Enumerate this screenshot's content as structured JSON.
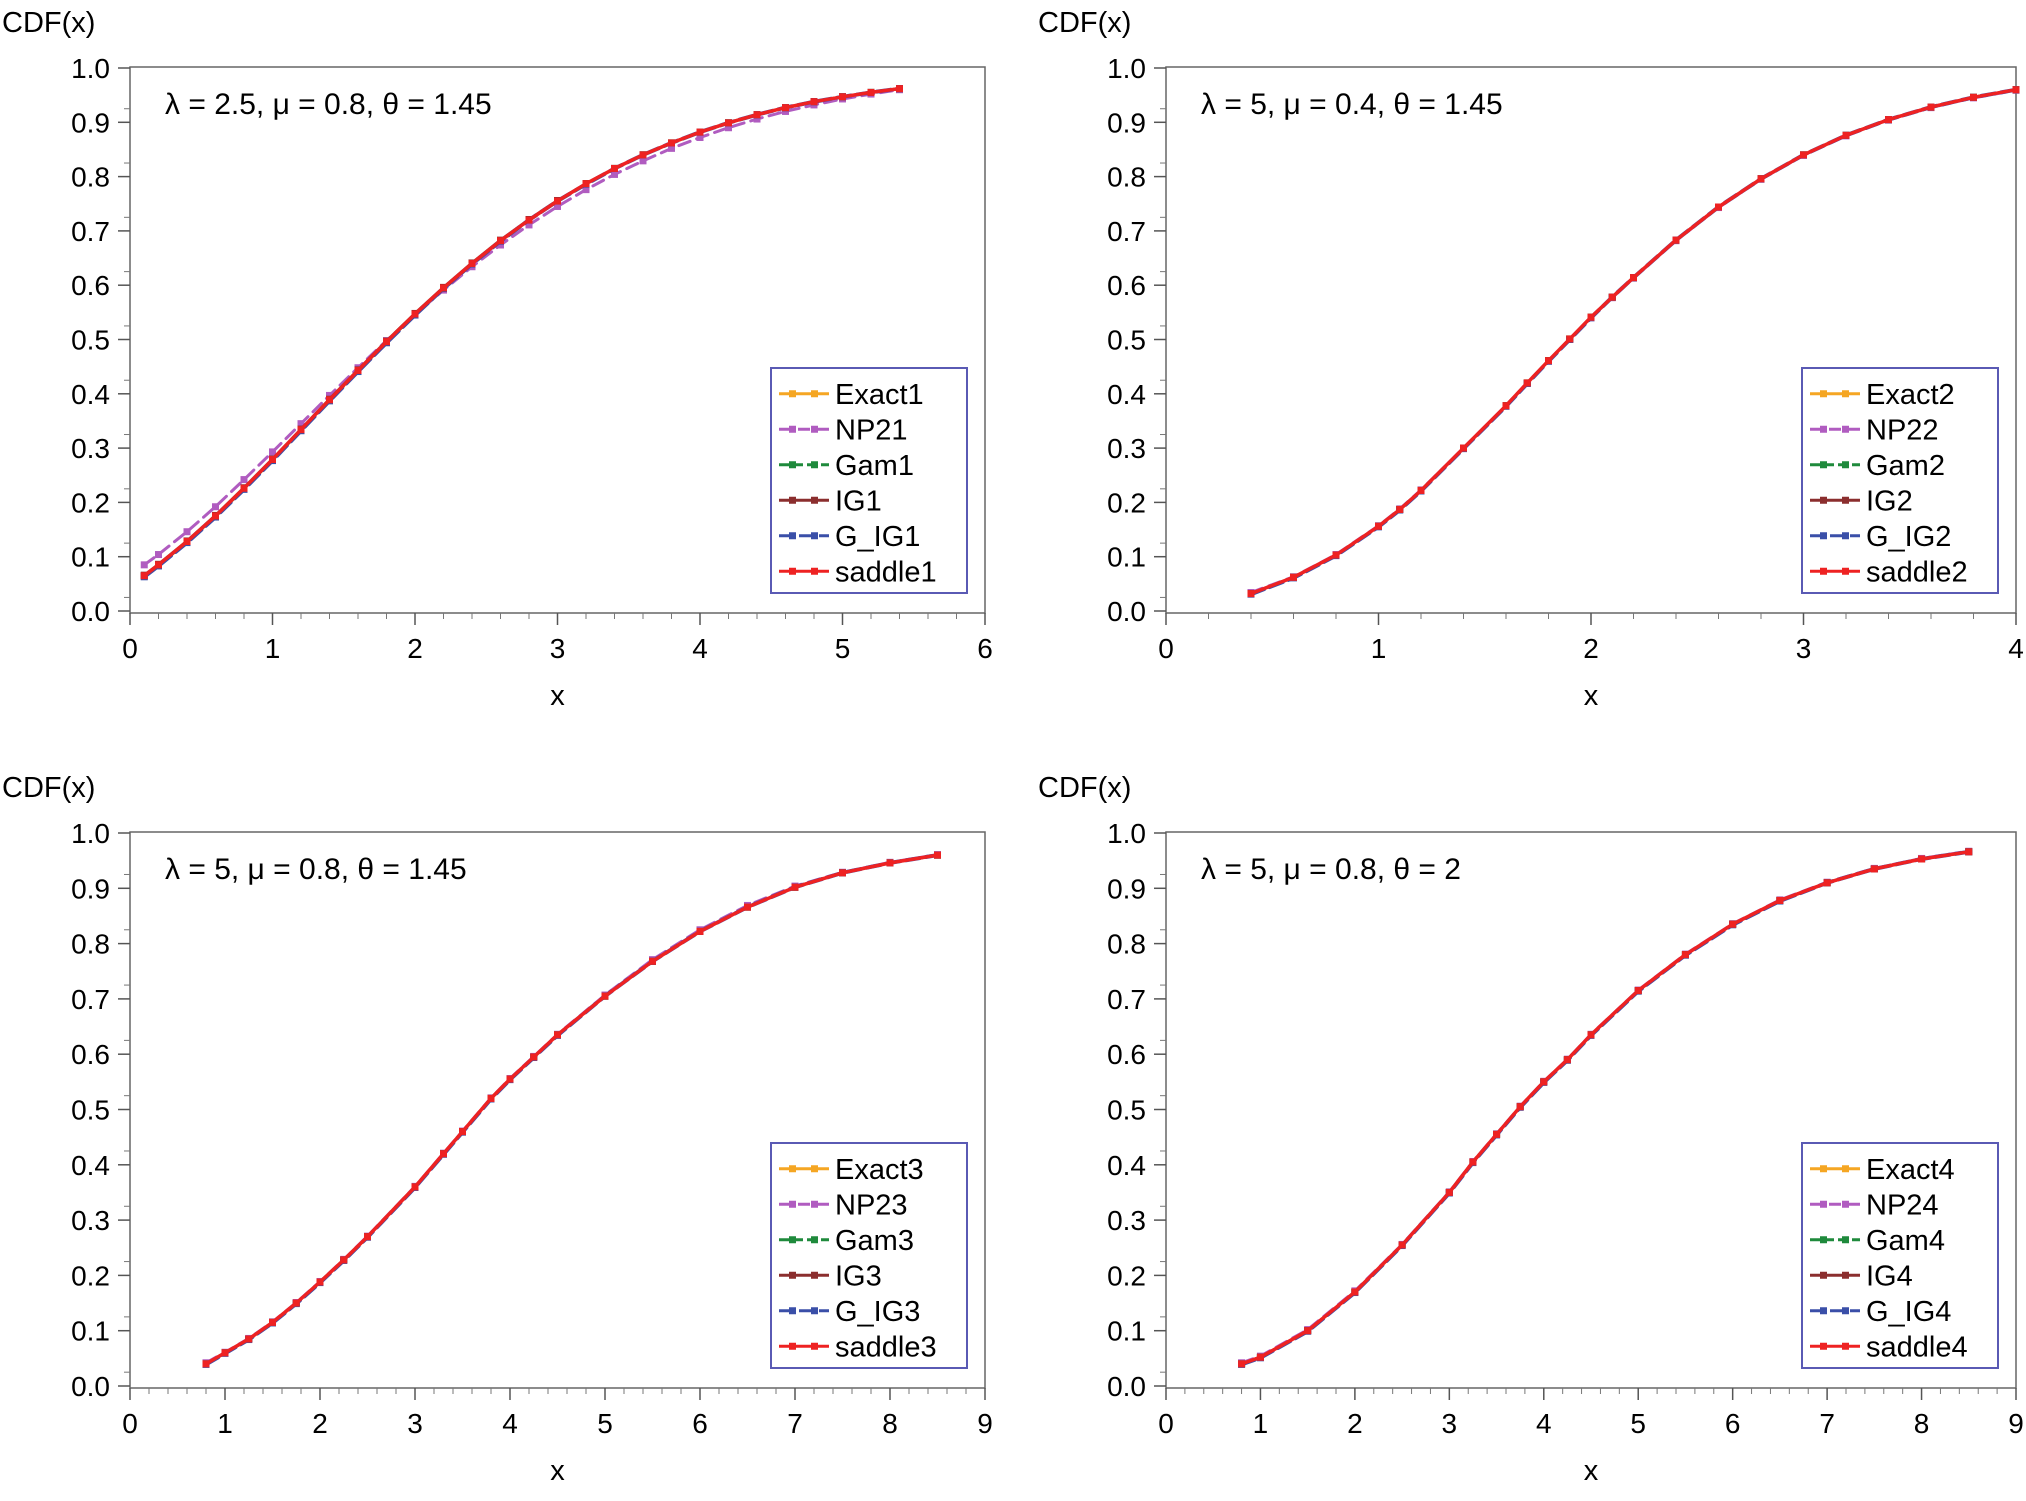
{
  "colors": {
    "Exact": "#f5a623",
    "NP2": "#b05cc0",
    "Gam": "#1f8a3c",
    "IG": "#8b2e2e",
    "G_IG": "#3a4fa8",
    "saddle": "#ee2222",
    "frame": "#666666",
    "legend_border": "#5a5ab4"
  },
  "chart_data": [
    {
      "type": "line",
      "ylabel": "CDF(x)",
      "xlabel": "x",
      "annotation": "λ = 2.5, μ = 0.8, θ = 1.45",
      "xlim": [
        0,
        6
      ],
      "ylim": [
        0,
        1
      ],
      "xticks": [
        "0",
        "1",
        "2",
        "3",
        "4",
        "5",
        "6"
      ],
      "yticks": [
        "0.0",
        "0.1",
        "0.2",
        "0.3",
        "0.4",
        "0.5",
        "0.6",
        "0.7",
        "0.8",
        "0.9",
        "1.0"
      ],
      "legend_position": "lower-right",
      "grid": false,
      "x": [
        0.1,
        0.2,
        0.4,
        0.6,
        0.8,
        1.0,
        1.2,
        1.4,
        1.6,
        1.8,
        2.0,
        2.2,
        2.4,
        2.6,
        2.8,
        3.0,
        3.2,
        3.4,
        3.6,
        3.8,
        4.0,
        4.2,
        4.4,
        4.6,
        4.8,
        5.0,
        5.2,
        5.4
      ],
      "series": [
        {
          "name": "Exact1",
          "color_key": "Exact",
          "values": [
            0.065,
            0.085,
            0.128,
            0.175,
            0.226,
            0.279,
            0.334,
            0.389,
            0.443,
            0.496,
            0.547,
            0.595,
            0.64,
            0.682,
            0.72,
            0.755,
            0.787,
            0.815,
            0.84,
            0.862,
            0.882,
            0.899,
            0.914,
            0.927,
            0.938,
            0.947,
            0.955,
            0.962
          ]
        },
        {
          "name": "NP21",
          "color_key": "NP2",
          "values": [
            0.085,
            0.104,
            0.146,
            0.192,
            0.242,
            0.293,
            0.345,
            0.397,
            0.448,
            0.498,
            0.546,
            0.591,
            0.634,
            0.674,
            0.711,
            0.745,
            0.776,
            0.804,
            0.829,
            0.852,
            0.872,
            0.89,
            0.906,
            0.92,
            0.932,
            0.943,
            0.952,
            0.96
          ]
        },
        {
          "name": "Gam1",
          "color_key": "Gam",
          "values": [
            0.064,
            0.084,
            0.127,
            0.174,
            0.225,
            0.278,
            0.333,
            0.388,
            0.442,
            0.495,
            0.546,
            0.594,
            0.64,
            0.682,
            0.72,
            0.755,
            0.787,
            0.815,
            0.84,
            0.862,
            0.882,
            0.899,
            0.914,
            0.927,
            0.938,
            0.947,
            0.955,
            0.962
          ]
        },
        {
          "name": "IG1",
          "color_key": "IG",
          "values": [
            0.066,
            0.086,
            0.129,
            0.176,
            0.227,
            0.28,
            0.335,
            0.39,
            0.444,
            0.497,
            0.548,
            0.596,
            0.641,
            0.683,
            0.721,
            0.756,
            0.787,
            0.815,
            0.84,
            0.862,
            0.882,
            0.899,
            0.914,
            0.927,
            0.938,
            0.947,
            0.955,
            0.962
          ]
        },
        {
          "name": "G_IG1",
          "color_key": "G_IG",
          "values": [
            0.063,
            0.083,
            0.126,
            0.173,
            0.224,
            0.277,
            0.332,
            0.387,
            0.441,
            0.494,
            0.545,
            0.594,
            0.639,
            0.681,
            0.72,
            0.755,
            0.786,
            0.815,
            0.84,
            0.862,
            0.882,
            0.899,
            0.914,
            0.927,
            0.938,
            0.947,
            0.955,
            0.962
          ]
        },
        {
          "name": "saddle1",
          "color_key": "saddle",
          "values": [
            0.065,
            0.085,
            0.128,
            0.175,
            0.226,
            0.279,
            0.334,
            0.389,
            0.443,
            0.496,
            0.547,
            0.595,
            0.64,
            0.682,
            0.72,
            0.755,
            0.787,
            0.815,
            0.84,
            0.862,
            0.882,
            0.899,
            0.914,
            0.927,
            0.938,
            0.947,
            0.955,
            0.962
          ]
        }
      ]
    },
    {
      "type": "line",
      "ylabel": "CDF(x)",
      "xlabel": "x",
      "annotation": "λ = 5, μ = 0.4, θ = 1.45",
      "xlim": [
        0,
        4
      ],
      "ylim": [
        0,
        1
      ],
      "xticks": [
        "0",
        "1",
        "2",
        "3",
        "4"
      ],
      "yticks": [
        "0.0",
        "0.1",
        "0.2",
        "0.3",
        "0.4",
        "0.5",
        "0.6",
        "0.7",
        "0.8",
        "0.9",
        "1.0"
      ],
      "legend_position": "lower-right",
      "grid": false,
      "x": [
        0.4,
        0.6,
        0.8,
        1.0,
        1.1,
        1.2,
        1.4,
        1.6,
        1.7,
        1.8,
        1.9,
        2.0,
        2.1,
        2.2,
        2.4,
        2.6,
        2.8,
        3.0,
        3.2,
        3.4,
        3.6,
        3.8,
        4.0
      ],
      "series": [
        {
          "name": "Exact2",
          "color_key": "Exact",
          "values": [
            0.032,
            0.062,
            0.103,
            0.156,
            0.187,
            0.222,
            0.3,
            0.378,
            0.42,
            0.461,
            0.501,
            0.541,
            0.578,
            0.614,
            0.683,
            0.744,
            0.796,
            0.84,
            0.876,
            0.905,
            0.928,
            0.946,
            0.96
          ]
        },
        {
          "name": "NP22",
          "color_key": "NP2",
          "values": [
            0.034,
            0.063,
            0.104,
            0.157,
            0.188,
            0.223,
            0.3,
            0.378,
            0.419,
            0.46,
            0.5,
            0.54,
            0.577,
            0.613,
            0.682,
            0.743,
            0.795,
            0.839,
            0.875,
            0.904,
            0.927,
            0.945,
            0.959
          ]
        },
        {
          "name": "Gam2",
          "color_key": "Gam",
          "values": [
            0.032,
            0.062,
            0.103,
            0.156,
            0.187,
            0.222,
            0.3,
            0.378,
            0.42,
            0.461,
            0.501,
            0.541,
            0.578,
            0.614,
            0.683,
            0.744,
            0.796,
            0.84,
            0.876,
            0.905,
            0.928,
            0.946,
            0.96
          ]
        },
        {
          "name": "IG2",
          "color_key": "IG",
          "values": [
            0.032,
            0.062,
            0.103,
            0.156,
            0.187,
            0.222,
            0.3,
            0.378,
            0.42,
            0.461,
            0.501,
            0.541,
            0.578,
            0.614,
            0.683,
            0.744,
            0.796,
            0.84,
            0.876,
            0.905,
            0.928,
            0.946,
            0.96
          ]
        },
        {
          "name": "G_IG2",
          "color_key": "G_IG",
          "values": [
            0.031,
            0.061,
            0.102,
            0.155,
            0.186,
            0.221,
            0.299,
            0.377,
            0.419,
            0.46,
            0.5,
            0.54,
            0.578,
            0.614,
            0.683,
            0.744,
            0.796,
            0.84,
            0.876,
            0.905,
            0.928,
            0.946,
            0.96
          ]
        },
        {
          "name": "saddle2",
          "color_key": "saddle",
          "values": [
            0.032,
            0.062,
            0.103,
            0.156,
            0.187,
            0.222,
            0.3,
            0.378,
            0.42,
            0.461,
            0.501,
            0.541,
            0.578,
            0.614,
            0.683,
            0.744,
            0.796,
            0.84,
            0.876,
            0.905,
            0.928,
            0.946,
            0.96
          ]
        }
      ]
    },
    {
      "type": "line",
      "ylabel": "CDF(x)",
      "xlabel": "x",
      "annotation": "λ = 5, μ = 0.8, θ = 1.45",
      "xlim": [
        0,
        9
      ],
      "ylim": [
        0,
        1
      ],
      "xticks": [
        "0",
        "1",
        "2",
        "3",
        "4",
        "5",
        "6",
        "7",
        "8",
        "9"
      ],
      "yticks": [
        "0.0",
        "0.1",
        "0.2",
        "0.3",
        "0.4",
        "0.5",
        "0.6",
        "0.7",
        "0.8",
        "0.9",
        "1.0"
      ],
      "legend_position": "lower-right",
      "grid": false,
      "x": [
        0.8,
        1.0,
        1.25,
        1.5,
        1.75,
        2.0,
        2.25,
        2.5,
        3.0,
        3.3,
        3.5,
        3.8,
        4.0,
        4.25,
        4.5,
        5.0,
        5.5,
        6.0,
        6.5,
        7.0,
        7.5,
        8.0,
        8.5
      ],
      "series": [
        {
          "name": "Exact3",
          "color_key": "Exact",
          "values": [
            0.04,
            0.06,
            0.085,
            0.115,
            0.15,
            0.188,
            0.228,
            0.27,
            0.36,
            0.42,
            0.46,
            0.52,
            0.555,
            0.595,
            0.635,
            0.705,
            0.768,
            0.822,
            0.866,
            0.902,
            0.928,
            0.946,
            0.96
          ]
        },
        {
          "name": "NP23",
          "color_key": "NP2",
          "values": [
            0.042,
            0.061,
            0.086,
            0.116,
            0.151,
            0.189,
            0.229,
            0.271,
            0.361,
            0.421,
            0.461,
            0.521,
            0.556,
            0.596,
            0.636,
            0.707,
            0.771,
            0.825,
            0.869,
            0.904,
            0.929,
            0.947,
            0.961
          ]
        },
        {
          "name": "Gam3",
          "color_key": "Gam",
          "values": [
            0.04,
            0.06,
            0.085,
            0.115,
            0.15,
            0.188,
            0.228,
            0.27,
            0.36,
            0.42,
            0.46,
            0.52,
            0.555,
            0.595,
            0.635,
            0.705,
            0.768,
            0.822,
            0.866,
            0.902,
            0.928,
            0.946,
            0.96
          ]
        },
        {
          "name": "IG3",
          "color_key": "IG",
          "values": [
            0.04,
            0.06,
            0.085,
            0.115,
            0.15,
            0.188,
            0.228,
            0.27,
            0.36,
            0.42,
            0.46,
            0.52,
            0.555,
            0.595,
            0.635,
            0.705,
            0.768,
            0.822,
            0.866,
            0.902,
            0.928,
            0.946,
            0.96
          ]
        },
        {
          "name": "G_IG3",
          "color_key": "G_IG",
          "values": [
            0.039,
            0.059,
            0.084,
            0.114,
            0.149,
            0.187,
            0.227,
            0.269,
            0.359,
            0.419,
            0.459,
            0.519,
            0.554,
            0.594,
            0.634,
            0.705,
            0.768,
            0.822,
            0.866,
            0.902,
            0.928,
            0.946,
            0.96
          ]
        },
        {
          "name": "saddle3",
          "color_key": "saddle",
          "values": [
            0.04,
            0.06,
            0.085,
            0.115,
            0.15,
            0.188,
            0.228,
            0.27,
            0.36,
            0.42,
            0.46,
            0.52,
            0.555,
            0.595,
            0.635,
            0.705,
            0.768,
            0.822,
            0.866,
            0.902,
            0.928,
            0.946,
            0.96
          ]
        }
      ]
    },
    {
      "type": "line",
      "ylabel": "CDF(x)",
      "xlabel": "x",
      "annotation": "λ = 5, μ = 0.8, θ = 2",
      "xlim": [
        0,
        9
      ],
      "ylim": [
        0,
        1
      ],
      "xticks": [
        "0",
        "1",
        "2",
        "3",
        "4",
        "5",
        "6",
        "7",
        "8",
        "9"
      ],
      "yticks": [
        "0.0",
        "0.1",
        "0.2",
        "0.3",
        "0.4",
        "0.5",
        "0.6",
        "0.7",
        "0.8",
        "0.9",
        "1.0"
      ],
      "legend_position": "lower-right",
      "grid": false,
      "x": [
        0.8,
        1.0,
        1.5,
        2.0,
        2.5,
        3.0,
        3.25,
        3.5,
        3.75,
        4.0,
        4.25,
        4.5,
        5.0,
        5.5,
        6.0,
        6.5,
        7.0,
        7.5,
        8.0,
        8.5
      ],
      "series": [
        {
          "name": "Exact4",
          "color_key": "Exact",
          "values": [
            0.04,
            0.052,
            0.1,
            0.17,
            0.255,
            0.35,
            0.405,
            0.455,
            0.505,
            0.55,
            0.59,
            0.635,
            0.715,
            0.78,
            0.835,
            0.878,
            0.91,
            0.935,
            0.953,
            0.966
          ]
        },
        {
          "name": "NP24",
          "color_key": "NP2",
          "values": [
            0.042,
            0.054,
            0.102,
            0.172,
            0.256,
            0.351,
            0.406,
            0.456,
            0.506,
            0.551,
            0.591,
            0.636,
            0.716,
            0.781,
            0.836,
            0.879,
            0.911,
            0.936,
            0.954,
            0.967
          ]
        },
        {
          "name": "Gam4",
          "color_key": "Gam",
          "values": [
            0.04,
            0.052,
            0.1,
            0.17,
            0.255,
            0.35,
            0.405,
            0.455,
            0.505,
            0.55,
            0.59,
            0.635,
            0.715,
            0.78,
            0.835,
            0.878,
            0.91,
            0.935,
            0.953,
            0.966
          ]
        },
        {
          "name": "IG4",
          "color_key": "IG",
          "values": [
            0.04,
            0.052,
            0.1,
            0.17,
            0.255,
            0.35,
            0.405,
            0.455,
            0.505,
            0.55,
            0.59,
            0.635,
            0.715,
            0.78,
            0.835,
            0.878,
            0.91,
            0.935,
            0.953,
            0.966
          ]
        },
        {
          "name": "G_IG4",
          "color_key": "G_IG",
          "values": [
            0.039,
            0.051,
            0.099,
            0.169,
            0.254,
            0.349,
            0.404,
            0.454,
            0.504,
            0.549,
            0.589,
            0.634,
            0.714,
            0.779,
            0.834,
            0.877,
            0.91,
            0.935,
            0.953,
            0.966
          ]
        },
        {
          "name": "saddle4",
          "color_key": "saddle",
          "values": [
            0.04,
            0.052,
            0.1,
            0.17,
            0.255,
            0.35,
            0.405,
            0.455,
            0.505,
            0.55,
            0.59,
            0.635,
            0.715,
            0.78,
            0.835,
            0.878,
            0.91,
            0.935,
            0.953,
            0.966
          ]
        }
      ]
    }
  ]
}
